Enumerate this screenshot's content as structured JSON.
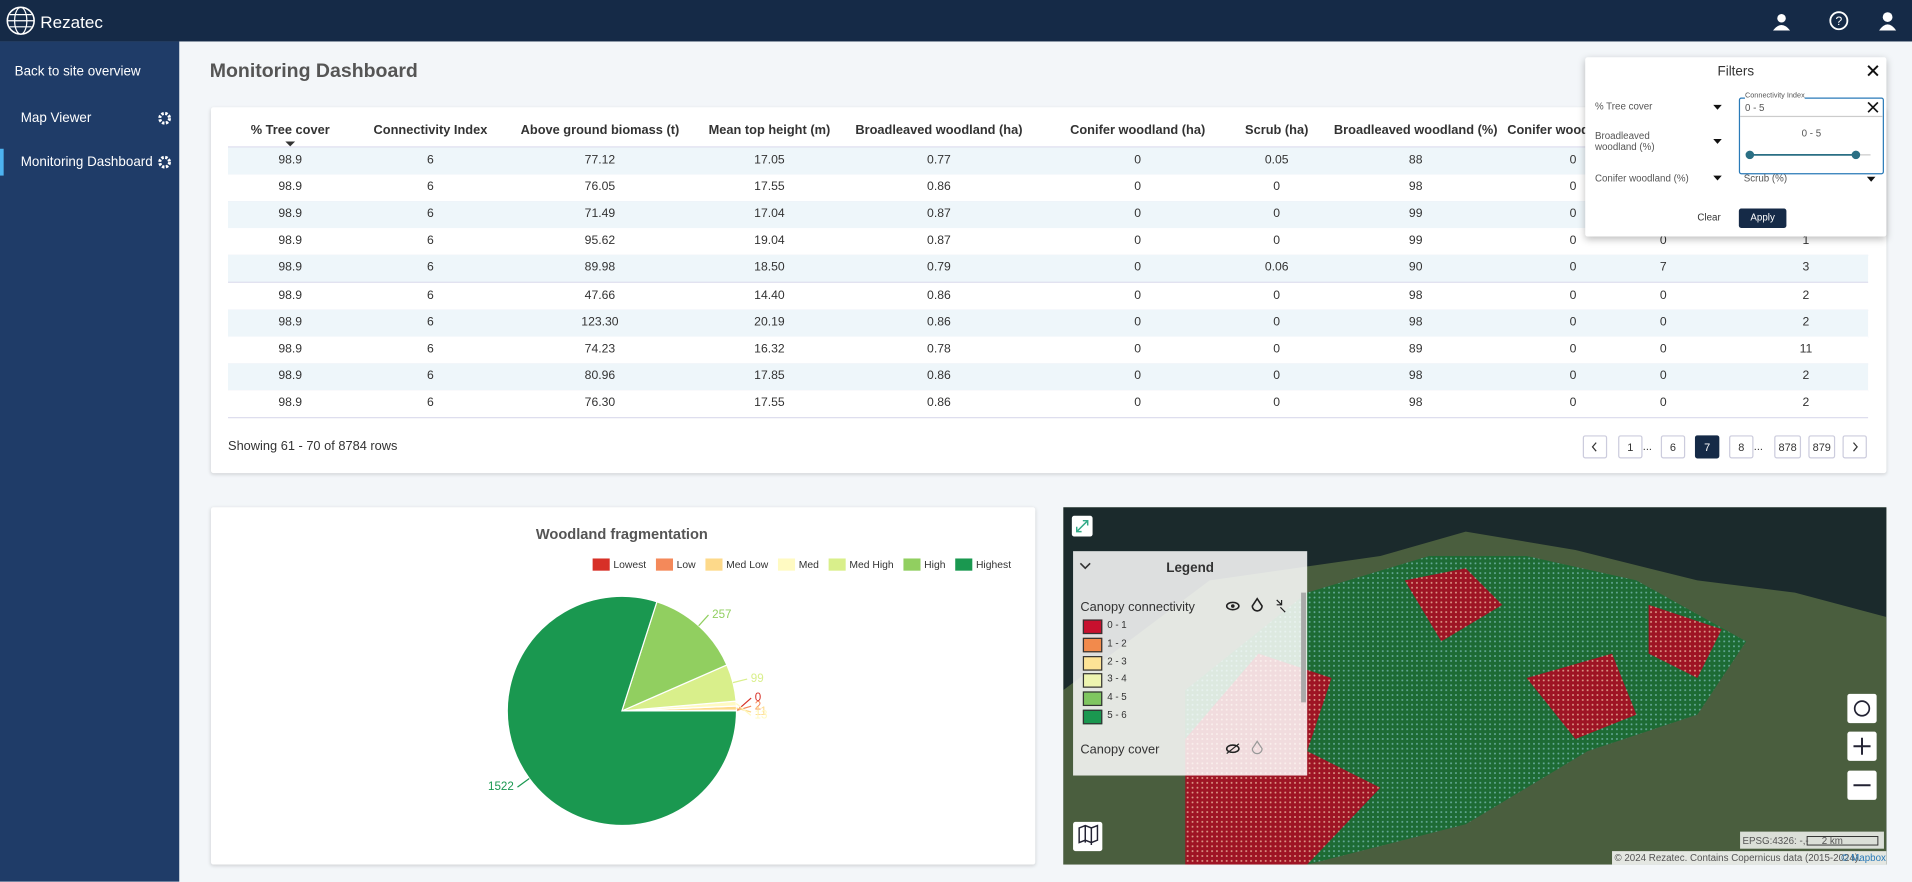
{
  "app": {
    "brand": "Rezatec"
  },
  "sidebar": {
    "back": "Back to site overview",
    "items": [
      "Map Viewer",
      "Monitoring Dashboard"
    ]
  },
  "page_title": "Monitoring Dashboard",
  "table": {
    "columns": [
      "% Tree cover",
      "Connectivity Index",
      "Above ground biomass (t)",
      "Mean top height (m)",
      "Broadleaved woodland (ha)",
      "Conifer woodland (ha)",
      "Scrub (ha)",
      "Broadleaved woodland (%)",
      "Conifer woodland (%)",
      null,
      null
    ],
    "rows": [
      [
        "98.9",
        "6",
        "77.12",
        "17.05",
        "0.77",
        "0",
        "0.05",
        "88",
        "0",
        null,
        null
      ],
      [
        "98.9",
        "6",
        "76.05",
        "17.55",
        "0.86",
        "0",
        "0",
        "98",
        "0",
        null,
        null
      ],
      [
        "98.9",
        "6",
        "71.49",
        "17.04",
        "0.87",
        "0",
        "0",
        "99",
        "0",
        null,
        null
      ],
      [
        "98.9",
        "6",
        "95.62",
        "19.04",
        "0.87",
        "0",
        "0",
        "99",
        "0",
        "0",
        "1"
      ],
      [
        "98.9",
        "6",
        "89.98",
        "18.50",
        "0.79",
        "0",
        "0.06",
        "90",
        "0",
        "7",
        "3"
      ],
      [
        "98.9",
        "6",
        "47.66",
        "14.40",
        "0.86",
        "0",
        "0",
        "98",
        "0",
        "0",
        "2"
      ],
      [
        "98.9",
        "6",
        "123.30",
        "20.19",
        "0.86",
        "0",
        "0",
        "98",
        "0",
        "0",
        "2"
      ],
      [
        "98.9",
        "6",
        "74.23",
        "16.32",
        "0.78",
        "0",
        "0",
        "89",
        "0",
        "0",
        "11"
      ],
      [
        "98.9",
        "6",
        "80.96",
        "17.85",
        "0.86",
        "0",
        "0",
        "98",
        "0",
        "0",
        "2"
      ],
      [
        "98.9",
        "6",
        "76.30",
        "17.55",
        "0.86",
        "0",
        "0",
        "98",
        "0",
        "0",
        "2"
      ]
    ],
    "footer": "Showing 61 - 70 of 8784 rows",
    "pages": [
      "1",
      "...",
      "6",
      "7",
      "8",
      "...",
      "878",
      "879"
    ],
    "active_page": "7"
  },
  "filters": {
    "title": "Filters",
    "fields": [
      "% Tree cover",
      "Broadleaved woodland (%)",
      "Conifer woodland (%)"
    ],
    "connectivity_label": "Connectivity Index",
    "connectivity_value": "0 - 5",
    "slider_label": "0 - 5",
    "scrub": "Scrub (%)",
    "clear": "Clear",
    "apply": "Apply"
  },
  "chart_data": {
    "type": "pie",
    "title": "Woodland fragmentation",
    "categories": [
      "Lowest",
      "Low",
      "Med Low",
      "Med",
      "Med High",
      "High",
      "Highest"
    ],
    "values": [
      0,
      2,
      11,
      13,
      99,
      257,
      1522
    ],
    "colors": [
      "#d73027",
      "#f4895a",
      "#fdd98a",
      "#fffac2",
      "#d9ef8b",
      "#91cf60",
      "#1a9850"
    ]
  },
  "map": {
    "legend_title": "Legend",
    "layers": [
      "Canopy connectivity",
      "Canopy cover"
    ],
    "classes": [
      "0 - 1",
      "1 - 2",
      "2 - 3",
      "3 - 4",
      "4 - 5",
      "5 - 6"
    ],
    "class_colors": [
      "#c8102e",
      "#f28a4c",
      "#fde396",
      "#eef5b0",
      "#7fc660",
      "#1a9850"
    ],
    "coords": "EPSG:4326: -,-",
    "scale": "2 km",
    "attribution": "© 2024 Rezatec. Contains Copernicus data (2015-2024).",
    "mapbox": "© Mapbox"
  }
}
